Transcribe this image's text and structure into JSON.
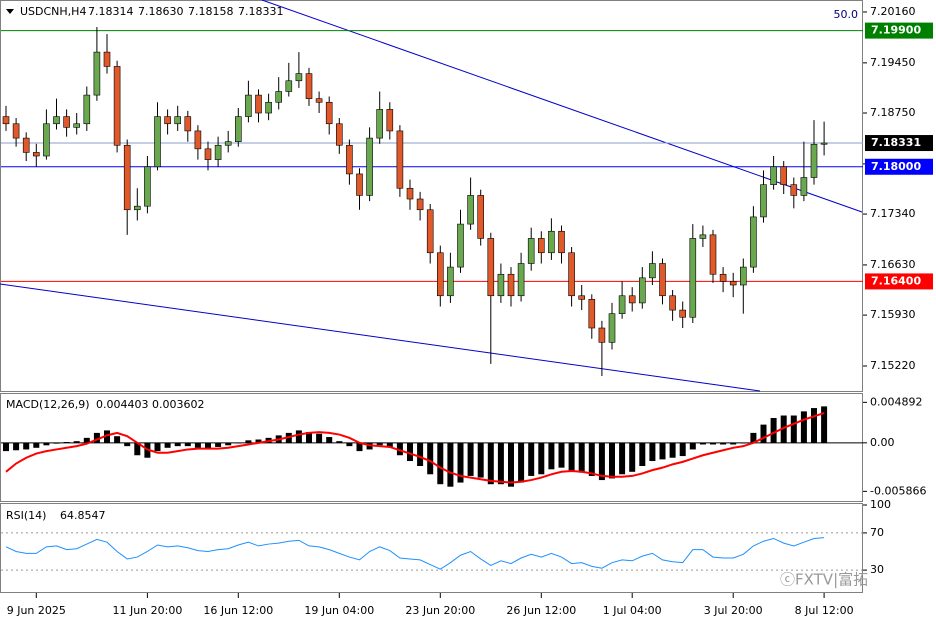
{
  "chart_data": [
    {
      "type": "candlestick",
      "title": "USDCNH,H4",
      "quote_labels": [
        "7.18314",
        "7.18630",
        "7.18158",
        "7.18331"
      ],
      "corner_label": "50.0",
      "watermark": "ⓒFXTV|富拓",
      "up_color": "#6aa84f",
      "down_color": "#e0592a",
      "categories": [
        null,
        null,
        null,
        "9 Jun 2025",
        null,
        null,
        null,
        null,
        null,
        null,
        null,
        null,
        null,
        null,
        "11 Jun 20:00",
        null,
        null,
        null,
        null,
        null,
        null,
        null,
        null,
        "16 Jun 12:00",
        null,
        null,
        null,
        null,
        null,
        null,
        null,
        null,
        null,
        "19 Jun 04:00",
        null,
        null,
        null,
        null,
        null,
        null,
        null,
        null,
        null,
        "23 Jun 20:00",
        null,
        null,
        null,
        null,
        null,
        null,
        null,
        null,
        null,
        "26 Jun 12:00",
        null,
        null,
        null,
        null,
        null,
        null,
        null,
        null,
        "1 Jul 04:00",
        null,
        null,
        null,
        null,
        null,
        null,
        null,
        null,
        null,
        "3 Jul 20:00",
        null,
        null,
        null,
        null,
        null,
        null,
        null,
        null,
        "8 Jul 12:00"
      ],
      "ohlc": [
        [
          7.187,
          7.1885,
          7.185,
          7.186
        ],
        [
          7.186,
          7.1868,
          7.1828,
          7.184
        ],
        [
          7.184,
          7.1848,
          7.1808,
          7.182
        ],
        [
          7.182,
          7.1832,
          7.18,
          7.1815
        ],
        [
          7.1815,
          7.188,
          7.181,
          7.186
        ],
        [
          7.186,
          7.1895,
          7.1852,
          7.187
        ],
        [
          7.187,
          7.188,
          7.1842,
          7.1855
        ],
        [
          7.1855,
          7.1875,
          7.1845,
          7.186
        ],
        [
          7.186,
          7.1912,
          7.185,
          7.19
        ],
        [
          7.19,
          7.1995,
          7.1892,
          7.196
        ],
        [
          7.196,
          7.1985,
          7.193,
          7.194
        ],
        [
          7.194,
          7.1948,
          7.182,
          7.183
        ],
        [
          7.183,
          7.1838,
          7.1705,
          7.174
        ],
        [
          7.174,
          7.177,
          7.1725,
          7.1745
        ],
        [
          7.1745,
          7.1815,
          7.1735,
          7.18
        ],
        [
          7.18,
          7.189,
          7.1795,
          7.187
        ],
        [
          7.187,
          7.188,
          7.1845,
          7.186
        ],
        [
          7.186,
          7.1885,
          7.185,
          7.187
        ],
        [
          7.187,
          7.1878,
          7.1835,
          7.185
        ],
        [
          7.185,
          7.1858,
          7.181,
          7.1825
        ],
        [
          7.1825,
          7.1835,
          7.1795,
          7.181
        ],
        [
          7.181,
          7.1842,
          7.18,
          7.183
        ],
        [
          7.183,
          7.185,
          7.182,
          7.1835
        ],
        [
          7.1835,
          7.1882,
          7.1828,
          7.187
        ],
        [
          7.187,
          7.192,
          7.1862,
          7.19
        ],
        [
          7.19,
          7.1908,
          7.1862,
          7.1875
        ],
        [
          7.1875,
          7.1902,
          7.1865,
          7.189
        ],
        [
          7.189,
          7.1925,
          7.188,
          7.1905
        ],
        [
          7.1905,
          7.1945,
          7.1898,
          7.192
        ],
        [
          7.192,
          7.196,
          7.191,
          7.193
        ],
        [
          7.193,
          7.1938,
          7.1885,
          7.1895
        ],
        [
          7.1895,
          7.1905,
          7.1875,
          7.189
        ],
        [
          7.189,
          7.1898,
          7.1845,
          7.186
        ],
        [
          7.186,
          7.1868,
          7.1818,
          7.183
        ],
        [
          7.183,
          7.1838,
          7.1775,
          7.179
        ],
        [
          7.179,
          7.1798,
          7.174,
          7.176
        ],
        [
          7.176,
          7.1855,
          7.1752,
          7.184
        ],
        [
          7.184,
          7.1905,
          7.1832,
          7.188
        ],
        [
          7.188,
          7.189,
          7.1838,
          7.185
        ],
        [
          7.185,
          7.1858,
          7.1758,
          7.177
        ],
        [
          7.177,
          7.1782,
          7.174,
          7.1755
        ],
        [
          7.1755,
          7.1765,
          7.1725,
          7.174
        ],
        [
          7.174,
          7.1748,
          7.1665,
          7.168
        ],
        [
          7.168,
          7.169,
          7.1605,
          7.162
        ],
        [
          7.162,
          7.168,
          7.161,
          7.166
        ],
        [
          7.166,
          7.174,
          7.1652,
          7.172
        ],
        [
          7.172,
          7.1785,
          7.1712,
          7.176
        ],
        [
          7.176,
          7.1768,
          7.169,
          7.17
        ],
        [
          7.17,
          7.1708,
          7.1525,
          7.162
        ],
        [
          7.162,
          7.1665,
          7.161,
          7.165
        ],
        [
          7.165,
          7.166,
          7.1605,
          7.162
        ],
        [
          7.162,
          7.168,
          7.1612,
          7.1665
        ],
        [
          7.1665,
          7.1715,
          7.1655,
          7.17
        ],
        [
          7.17,
          7.171,
          7.1665,
          7.168
        ],
        [
          7.168,
          7.1728,
          7.167,
          7.171
        ],
        [
          7.171,
          7.1718,
          7.1665,
          7.168
        ],
        [
          7.168,
          7.1688,
          7.1605,
          7.162
        ],
        [
          7.162,
          7.1635,
          7.16,
          7.1615
        ],
        [
          7.1615,
          7.1622,
          7.156,
          7.1575
        ],
        [
          7.1575,
          7.1585,
          7.1508,
          7.1555
        ],
        [
          7.1555,
          7.161,
          7.1545,
          7.1595
        ],
        [
          7.1595,
          7.164,
          7.1588,
          7.162
        ],
        [
          7.162,
          7.1632,
          7.1598,
          7.161
        ],
        [
          7.161,
          7.166,
          7.1602,
          7.1645
        ],
        [
          7.1645,
          7.1682,
          7.1635,
          7.1665
        ],
        [
          7.1665,
          7.1672,
          7.1608,
          7.162
        ],
        [
          7.162,
          7.1628,
          7.1585,
          7.16
        ],
        [
          7.16,
          7.1612,
          7.1575,
          7.159
        ],
        [
          7.159,
          7.172,
          7.1582,
          7.17
        ],
        [
          7.17,
          7.1718,
          7.1688,
          7.1705
        ],
        [
          7.1705,
          7.1712,
          7.1638,
          7.165
        ],
        [
          7.165,
          7.166,
          7.1625,
          7.164
        ],
        [
          7.164,
          7.1652,
          7.1618,
          7.1635
        ],
        [
          7.1635,
          7.1672,
          7.1595,
          7.166
        ],
        [
          7.166,
          7.1745,
          7.1652,
          7.173
        ],
        [
          7.173,
          7.1795,
          7.1722,
          7.1775
        ],
        [
          7.1775,
          7.1815,
          7.1768,
          7.18
        ],
        [
          7.18,
          7.1808,
          7.1762,
          7.1775
        ],
        [
          7.1775,
          7.1785,
          7.1742,
          7.176
        ],
        [
          7.176,
          7.1835,
          7.1752,
          7.1785
        ],
        [
          7.1785,
          7.1865,
          7.1775,
          7.18314
        ],
        [
          7.18314,
          7.1863,
          7.18158,
          7.18331
        ]
      ],
      "ylim": [
        7.14857,
        7.20327
      ],
      "yticks": [
        {
          "value": 7.2016,
          "label": "7.20160"
        },
        {
          "value": 7.1945,
          "label": "7.19450"
        },
        {
          "value": 7.1875,
          "label": "7.18750"
        },
        {
          "value": 7.1804,
          "label": "7.18040"
        },
        {
          "value": 7.1734,
          "label": "7.17340"
        },
        {
          "value": 7.1663,
          "label": "7.16630"
        },
        {
          "value": 7.1593,
          "label": "7.15930"
        },
        {
          "value": 7.1522,
          "label": "7.15220"
        }
      ],
      "levels": [
        {
          "value": 7.199,
          "label": "7.19900",
          "color": "#008000",
          "line_color": "#008000"
        },
        {
          "value": 7.18331,
          "label": "7.18331",
          "color": "#000000",
          "line_color": "#8a9cc8"
        },
        {
          "value": 7.18,
          "label": "7.18000",
          "color": "#0000ff",
          "line_color": "#0000ff"
        },
        {
          "value": 7.164,
          "label": "7.16400",
          "color": "#ff0000",
          "line_color": "#ff0000"
        }
      ]
    },
    {
      "type": "macd",
      "title": "MACD(12,26,9)",
      "histogram": {
        "color": "#000000",
        "values": [
          -0.001,
          -0.0009,
          -0.0008,
          -0.0006,
          -0.0003,
          -0.0001,
          0.0001,
          0.0002,
          0.0006,
          0.0012,
          0.0015,
          0.0008,
          -0.0004,
          -0.0015,
          -0.0018,
          -0.001,
          -0.0006,
          -0.0004,
          -0.0004,
          -0.0006,
          -0.0007,
          -0.0005,
          -0.0003,
          0.0,
          0.0003,
          0.0004,
          0.0006,
          0.0009,
          0.0012,
          0.0015,
          0.0013,
          0.0011,
          0.0007,
          0.0002,
          -0.0004,
          -0.001,
          -0.0008,
          -0.0003,
          -0.0005,
          -0.0015,
          -0.0022,
          -0.0028,
          -0.0038,
          -0.005,
          -0.0053,
          -0.0048,
          -0.004,
          -0.0042,
          -0.005,
          -0.005,
          -0.0053,
          -0.0048,
          -0.004,
          -0.0038,
          -0.0032,
          -0.003,
          -0.0034,
          -0.0036,
          -0.004,
          -0.0045,
          -0.0043,
          -0.0038,
          -0.0035,
          -0.0028,
          -0.0022,
          -0.002,
          -0.0018,
          -0.0016,
          -0.0008,
          -0.0002,
          -0.0002,
          -0.0002,
          -0.0002,
          0.0,
          0.0012,
          0.0022,
          0.003,
          0.0033,
          0.0033,
          0.0038,
          0.0042,
          0.004403
        ]
      },
      "signal": {
        "color": "#ff0000",
        "values": [
          -0.0035,
          -0.0025,
          -0.0018,
          -0.0013,
          -0.001,
          -0.0008,
          -0.0006,
          -0.0004,
          -0.0001,
          0.0004,
          0.0009,
          0.0012,
          0.0008,
          0.0,
          -0.0008,
          -0.0012,
          -0.0012,
          -0.001,
          -0.0008,
          -0.0007,
          -0.0007,
          -0.0007,
          -0.0006,
          -0.0004,
          -0.0002,
          0.0,
          0.0002,
          0.0004,
          0.0007,
          0.001,
          0.0012,
          0.0013,
          0.0012,
          0.001,
          0.0006,
          0.0,
          -0.0003,
          -0.0004,
          -0.0005,
          -0.0009,
          -0.0013,
          -0.0017,
          -0.0022,
          -0.003,
          -0.0036,
          -0.004,
          -0.0042,
          -0.0044,
          -0.0046,
          -0.0047,
          -0.0048,
          -0.0047,
          -0.0045,
          -0.0042,
          -0.0038,
          -0.0035,
          -0.0034,
          -0.0035,
          -0.0037,
          -0.004,
          -0.0041,
          -0.0041,
          -0.004,
          -0.0037,
          -0.0033,
          -0.003,
          -0.0026,
          -0.0023,
          -0.0019,
          -0.0015,
          -0.0012,
          -0.0009,
          -0.0006,
          -0.0004,
          0.0,
          0.0006,
          0.0012,
          0.0018,
          0.0023,
          0.0028,
          0.0032,
          0.003602
        ]
      },
      "ylim": [
        -0.00715,
        0.0059
      ],
      "yticks": [
        0.004892,
        {
          "value": 0,
          "label": "0.00"
        },
        -0.005866
      ]
    },
    {
      "type": "line",
      "title": "RSI(14)",
      "color": "#1e90ff",
      "values": [
        55,
        50,
        48,
        48,
        55,
        56,
        52,
        53,
        58,
        63,
        60,
        50,
        42,
        44,
        50,
        57,
        55,
        56,
        54,
        51,
        50,
        52,
        53,
        57,
        60,
        56,
        58,
        59,
        61,
        62,
        56,
        55,
        52,
        48,
        44,
        41,
        50,
        55,
        51,
        43,
        42,
        41,
        36,
        31,
        38,
        46,
        50,
        42,
        35,
        40,
        37,
        43,
        47,
        44,
        48,
        44,
        37,
        38,
        34,
        32,
        38,
        41,
        40,
        45,
        48,
        41,
        39,
        38,
        52,
        52,
        44,
        43,
        43,
        47,
        56,
        61,
        64,
        59,
        56,
        60,
        64,
        64.8547
      ],
      "ylim": [
        0,
        100
      ],
      "yticks": [
        100,
        70,
        30
      ]
    }
  ]
}
